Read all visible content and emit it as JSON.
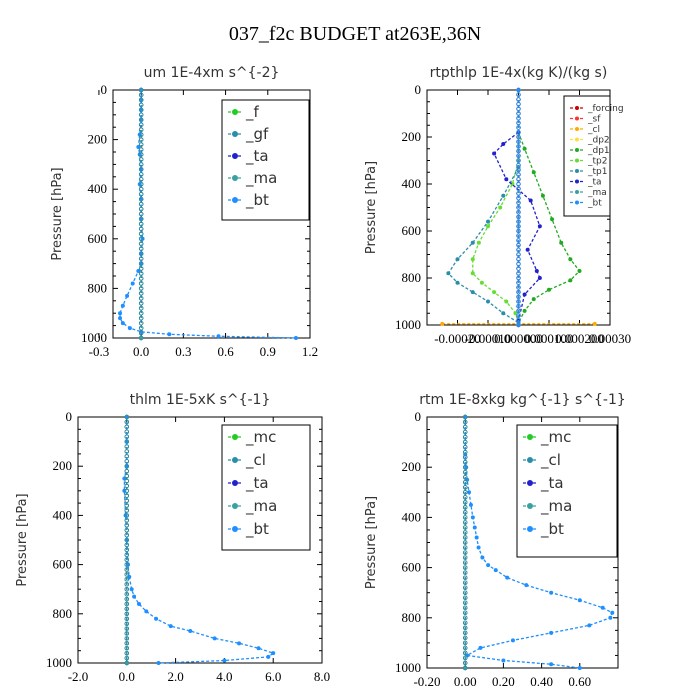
{
  "figure": {
    "title": "037_f2c  BUDGET at263E,36N"
  },
  "chart_data": [
    {
      "type": "line",
      "title": "um   1E-4xm s^{-2}",
      "ylabel": "Pressure [hPa]",
      "xlim": [
        -0.2,
        1.2
      ],
      "ylim": [
        1000,
        0
      ],
      "xticks": [
        "-0.3",
        "0.0",
        "0.3",
        "0.6",
        "0.9",
        "1.2"
      ],
      "yticks": [
        "0",
        "200",
        "400",
        "600",
        "800",
        "1000"
      ],
      "legend_position": "top-right",
      "series": [
        {
          "name": "_f",
          "color": "#22cc22",
          "marker": "circle",
          "x": [
            0,
            0
          ],
          "y": [
            0,
            1000
          ]
        },
        {
          "name": "_gf",
          "color": "#2b8ea8",
          "marker": "x",
          "x": [
            0,
            0
          ],
          "y": [
            0,
            1000
          ]
        },
        {
          "name": "_ta",
          "color": "#2222cc",
          "marker": "plus",
          "x": [
            0,
            0
          ],
          "y": [
            0,
            1000
          ]
        },
        {
          "name": "_ma",
          "color": "#3aa0a0",
          "marker": "dash",
          "x": [
            0,
            0
          ],
          "y": [
            0,
            1000
          ]
        },
        {
          "name": "_bt",
          "color": "#1f8fff",
          "marker": "star",
          "x": [
            0,
            0,
            0,
            0,
            -0.01,
            -0.02,
            -0.01,
            0,
            -0.01,
            0,
            0,
            0.01,
            0,
            0,
            -0.02,
            -0.06,
            -0.1,
            -0.13,
            -0.15,
            -0.15,
            -0.13,
            -0.08,
            0.0,
            0.2,
            0.55,
            1.1
          ],
          "y": [
            0,
            40,
            80,
            120,
            180,
            230,
            260,
            320,
            380,
            440,
            520,
            600,
            660,
            700,
            730,
            780,
            830,
            870,
            900,
            920,
            940,
            960,
            975,
            985,
            993,
            1000
          ]
        }
      ]
    },
    {
      "type": "line",
      "title": "rtpthlp   1E-4x(kg K)/(kg s)",
      "ylabel": "Pressure [hPa]",
      "xlim": [
        -0.0003,
        0.0003
      ],
      "ylim": [
        1000,
        0
      ],
      "xticks": [
        "-0.00020",
        "-0.00010",
        "0.000000",
        "0.000100",
        "0.000200",
        "0.00030"
      ],
      "yticks": [
        "0",
        "200",
        "400",
        "600",
        "800",
        "1000"
      ],
      "legend_position": "top-right",
      "series": [
        {
          "name": "_forcing",
          "color": "#cc0000",
          "marker": "circle",
          "x": [
            0,
            0
          ],
          "y": [
            0,
            1000
          ]
        },
        {
          "name": "_sf",
          "color": "#ff3333",
          "marker": "star",
          "x": [
            0,
            0
          ],
          "y": [
            990,
            1000
          ]
        },
        {
          "name": "_cl",
          "color": "#ffaa00",
          "marker": "star",
          "x": [
            -0.00025,
            0.00025
          ],
          "y": [
            995,
            995
          ]
        },
        {
          "name": "_dp2",
          "color": "#ffdd44",
          "marker": "x",
          "x": [
            0,
            0
          ],
          "y": [
            180,
            300
          ]
        },
        {
          "name": "_dp1",
          "color": "#22aa22",
          "marker": "plus",
          "x": [
            0.0,
            2e-05,
            5e-05,
            8e-05,
            0.00011,
            0.00014,
            0.00017,
            0.0002,
            0.00017,
            0.0001,
            5e-05,
            2e-05,
            0.0
          ],
          "y": [
            180,
            250,
            350,
            450,
            550,
            650,
            720,
            770,
            810,
            850,
            890,
            940,
            990
          ]
        },
        {
          "name": "_tp2",
          "color": "#66dd33",
          "marker": "circle",
          "x": [
            0.0,
            -2e-05,
            -6e-05,
            -0.0001,
            -0.00013,
            -0.00015,
            -0.00015,
            -0.00012,
            -8e-05,
            -4e-05,
            -1e-05,
            0.0
          ],
          "y": [
            300,
            400,
            500,
            580,
            650,
            720,
            780,
            820,
            860,
            900,
            950,
            990
          ]
        },
        {
          "name": "_tp1",
          "color": "#2b8ea8",
          "marker": "x",
          "x": [
            0.0,
            -5e-05,
            -0.0001,
            -0.00015,
            -0.0002,
            -0.00023,
            -0.0002,
            -0.00015,
            -0.0001,
            -5e-05,
            0.0
          ],
          "y": [
            330,
            450,
            560,
            650,
            720,
            780,
            820,
            860,
            900,
            950,
            990
          ]
        },
        {
          "name": "_ta",
          "color": "#2222cc",
          "marker": "plus",
          "x": [
            0.0,
            -5e-05,
            -8e-05,
            -4e-05,
            4e-05,
            7e-05,
            3e-05,
            6e-05,
            7e-05,
            2e-05,
            0.0
          ],
          "y": [
            180,
            230,
            270,
            380,
            470,
            580,
            680,
            770,
            800,
            870,
            980
          ]
        },
        {
          "name": "_ma",
          "color": "#3aa0a0",
          "marker": "dash",
          "x": [
            0,
            0
          ],
          "y": [
            0,
            1000
          ]
        },
        {
          "name": "_bt",
          "color": "#1f8fff",
          "marker": "star",
          "x": [
            0,
            0
          ],
          "y": [
            0,
            1000
          ]
        }
      ]
    },
    {
      "type": "line",
      "title": "thlm   1E-5xK s^{-1}",
      "ylabel": "Pressure [hPa]",
      "xlim": [
        -2,
        8
      ],
      "ylim": [
        1000,
        0
      ],
      "xticks": [
        "-2.0",
        "0.0",
        "2.0",
        "4.0",
        "6.0",
        "8.0"
      ],
      "yticks": [
        "0",
        "200",
        "400",
        "600",
        "800",
        "1000"
      ],
      "legend_position": "top-right",
      "series": [
        {
          "name": "_mc",
          "color": "#22cc22",
          "marker": "circle",
          "x": [
            0,
            0
          ],
          "y": [
            0,
            1000
          ]
        },
        {
          "name": "_cl",
          "color": "#2b8ea8",
          "marker": "x",
          "x": [
            0,
            0
          ],
          "y": [
            0,
            1000
          ]
        },
        {
          "name": "_ta",
          "color": "#2222cc",
          "marker": "plus",
          "x": [
            0,
            0
          ],
          "y": [
            0,
            1000
          ]
        },
        {
          "name": "_ma",
          "color": "#3aa0a0",
          "marker": "dash",
          "x": [
            0,
            0
          ],
          "y": [
            0,
            1000
          ]
        },
        {
          "name": "_bt",
          "color": "#1f8fff",
          "marker": "star",
          "x": [
            0,
            0,
            0,
            -0.1,
            -0.1,
            -0.05,
            0,
            0.05,
            0.1,
            0.2,
            0.3,
            0.5,
            0.8,
            1.2,
            1.8,
            2.6,
            3.6,
            4.6,
            5.4,
            6.0,
            5.8,
            4.0,
            1.3
          ],
          "y": [
            0,
            100,
            200,
            250,
            300,
            400,
            500,
            600,
            650,
            700,
            730,
            760,
            790,
            820,
            850,
            870,
            900,
            920,
            940,
            960,
            975,
            990,
            1000
          ]
        }
      ]
    },
    {
      "type": "line",
      "title": "rtm   1E-8xkg kg^{-1} s^{-1}",
      "ylabel": "Pressure [hPa]",
      "xlim": [
        -0.2,
        0.8
      ],
      "ylim": [
        1000,
        0
      ],
      "xticks": [
        "-0.20",
        "0.00",
        "0.20",
        "0.40",
        "0.60"
      ],
      "yticks": [
        "0",
        "200",
        "400",
        "600",
        "800",
        "1000"
      ],
      "legend_position": "top-right",
      "series": [
        {
          "name": "_mc",
          "color": "#22cc22",
          "marker": "circle",
          "x": [
            0,
            0
          ],
          "y": [
            0,
            1000
          ]
        },
        {
          "name": "_cl",
          "color": "#2b8ea8",
          "marker": "x",
          "x": [
            0,
            0
          ],
          "y": [
            0,
            1000
          ]
        },
        {
          "name": "_ta",
          "color": "#2222cc",
          "marker": "plus",
          "x": [
            0,
            0
          ],
          "y": [
            0,
            1000
          ]
        },
        {
          "name": "_ma",
          "color": "#3aa0a0",
          "marker": "dash",
          "x": [
            0,
            0
          ],
          "y": [
            0,
            1000
          ]
        },
        {
          "name": "_bt",
          "color": "#1f8fff",
          "marker": "star",
          "x": [
            0,
            0,
            0.005,
            0.01,
            0.02,
            0.03,
            0.04,
            0.05,
            0.06,
            0.07,
            0.09,
            0.12,
            0.16,
            0.22,
            0.32,
            0.45,
            0.6,
            0.72,
            0.77,
            0.76,
            0.65,
            0.45,
            0.25,
            0.08,
            0.01,
            0.2,
            0.45,
            0.6
          ],
          "y": [
            0,
            150,
            200,
            250,
            300,
            350,
            400,
            440,
            480,
            520,
            560,
            590,
            610,
            640,
            670,
            700,
            730,
            760,
            780,
            800,
            830,
            860,
            890,
            920,
            950,
            970,
            985,
            1000
          ]
        }
      ]
    }
  ]
}
